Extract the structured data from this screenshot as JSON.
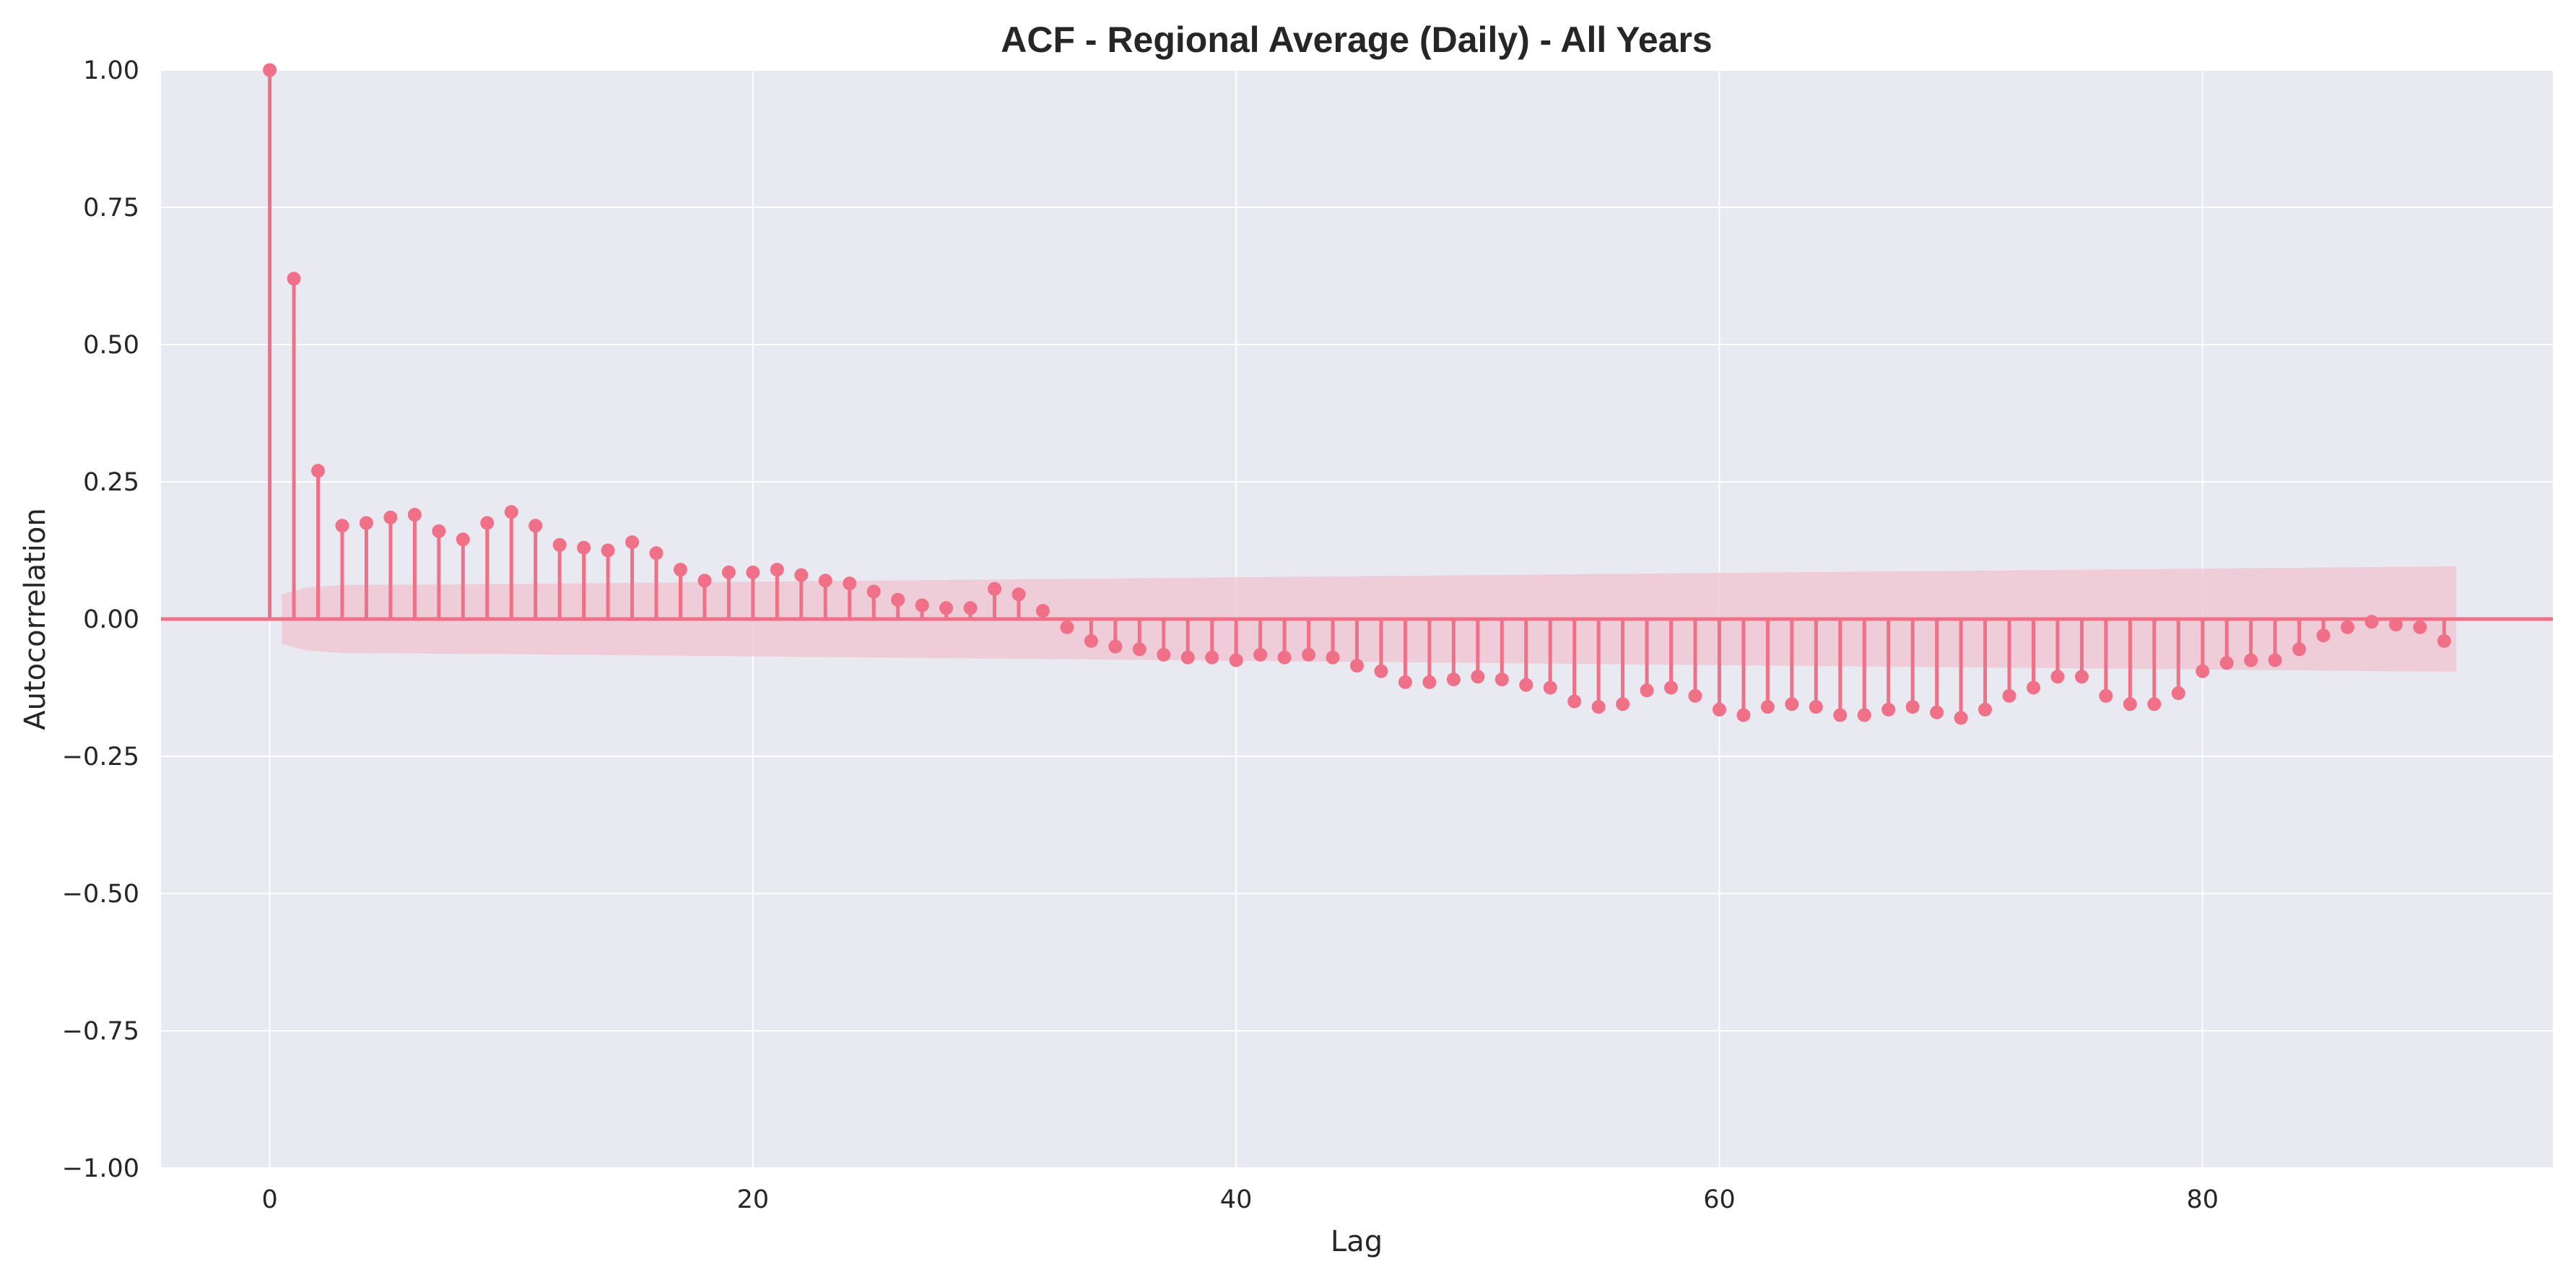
{
  "chart_data": {
    "type": "stem",
    "title": "ACF - Regional Average (Daily) - All Years",
    "xlabel": "Lag",
    "ylabel": "Autocorrelation",
    "xlim": [
      -4.5,
      94.5
    ],
    "ylim": [
      -1.0,
      1.0
    ],
    "xticks": [
      0,
      20,
      40,
      60,
      80
    ],
    "xtick_labels": [
      "0",
      "20",
      "40",
      "60",
      "80"
    ],
    "yticks": [
      1.0,
      0.75,
      0.5,
      0.25,
      0.0,
      -0.25,
      -0.5,
      -0.75,
      -1.0
    ],
    "ytick_labels": [
      "1.00",
      "0.75",
      "0.50",
      "0.25",
      "0.00",
      "−0.25",
      "−0.50",
      "−0.75",
      "−1.00"
    ],
    "grid": true,
    "colors": {
      "stem": "#f07088",
      "marker": "#f07088",
      "confidence_band": "#f0c8d4",
      "axes_background": "#e9e9f1",
      "grid": "#ffffff"
    },
    "lags": [
      0,
      1,
      2,
      3,
      4,
      5,
      6,
      7,
      8,
      9,
      10,
      11,
      12,
      13,
      14,
      15,
      16,
      17,
      18,
      19,
      20,
      21,
      22,
      23,
      24,
      25,
      26,
      27,
      28,
      29,
      30,
      31,
      32,
      33,
      34,
      35,
      36,
      37,
      38,
      39,
      40,
      41,
      42,
      43,
      44,
      45,
      46,
      47,
      48,
      49,
      50,
      51,
      52,
      53,
      54,
      55,
      56,
      57,
      58,
      59,
      60,
      61,
      62,
      63,
      64,
      65,
      66,
      67,
      68,
      69,
      70,
      71,
      72,
      73,
      74,
      75,
      76,
      77,
      78,
      79,
      80,
      81,
      82,
      83,
      84,
      85,
      86,
      87,
      88,
      89,
      90
    ],
    "acf": [
      1.0,
      0.62,
      0.27,
      0.17,
      0.175,
      0.185,
      0.19,
      0.16,
      0.145,
      0.175,
      0.195,
      0.17,
      0.135,
      0.13,
      0.125,
      0.14,
      0.12,
      0.09,
      0.07,
      0.085,
      0.085,
      0.09,
      0.08,
      0.07,
      0.065,
      0.05,
      0.035,
      0.025,
      0.02,
      0.02,
      0.055,
      0.045,
      0.015,
      -0.015,
      -0.04,
      -0.05,
      -0.055,
      -0.065,
      -0.07,
      -0.07,
      -0.075,
      -0.065,
      -0.07,
      -0.065,
      -0.07,
      -0.085,
      -0.095,
      -0.115,
      -0.115,
      -0.11,
      -0.105,
      -0.11,
      -0.12,
      -0.125,
      -0.15,
      -0.16,
      -0.155,
      -0.13,
      -0.125,
      -0.14,
      -0.165,
      -0.175,
      -0.16,
      -0.155,
      -0.16,
      -0.175,
      -0.175,
      -0.165,
      -0.16,
      -0.17,
      -0.18,
      -0.165,
      -0.14,
      -0.125,
      -0.105,
      -0.105,
      -0.14,
      -0.155,
      -0.155,
      -0.135,
      -0.095,
      -0.08,
      -0.075,
      -0.075,
      -0.055,
      -0.03,
      -0.015,
      -0.005,
      -0.01,
      -0.015,
      -0.04
    ],
    "confidence_band": {
      "lags": [
        0.5,
        1.5,
        3,
        10,
        30,
        60,
        90.5
      ],
      "half_width": [
        0.045,
        0.057,
        0.062,
        0.064,
        0.072,
        0.084,
        0.096
      ]
    }
  }
}
